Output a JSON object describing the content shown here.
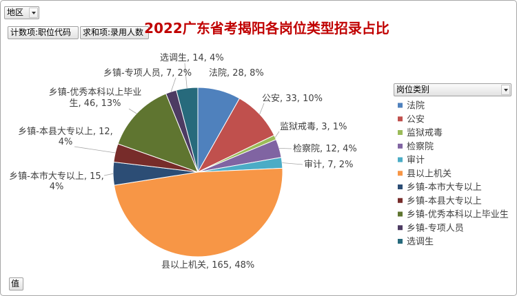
{
  "pivot": {
    "filter_button": {
      "label": "地区",
      "icon": "chevron-down-icon"
    },
    "value_buttons": [
      {
        "label": "计数项:职位代码"
      },
      {
        "label": "求和项:录用人数"
      }
    ],
    "legend_field_button": {
      "label": "岗位类别",
      "icon": "chevron-down-icon"
    },
    "values_button": {
      "label": "值"
    }
  },
  "chart_data": {
    "type": "pie",
    "title": "2022广东省考揭阳各岗位类型招录占比",
    "title_color": "#C00000",
    "categories": [
      "法院",
      "公安",
      "监狱戒毒",
      "检察院",
      "审计",
      "县以上机关",
      "乡镇-本市大专以上",
      "乡镇-本县大专以上",
      "乡镇-优秀本科以上毕业生",
      "乡镇-专项人员",
      "选调生"
    ],
    "values": [
      28,
      33,
      3,
      12,
      7,
      165,
      15,
      12,
      46,
      7,
      14
    ],
    "data_labels": [
      [
        "法院, 28, 8%"
      ],
      [
        "公安, 33, 10%"
      ],
      [
        "监狱戒毒, 3, 1%"
      ],
      [
        "检察院, 12, 4%"
      ],
      [
        "审计, 7, 2%"
      ],
      [
        "县以上机关, 165, 48%"
      ],
      [
        "乡镇-本市大专以上, 15,",
        "4%"
      ],
      [
        "乡镇-本县大专以上, 12,",
        "4%"
      ],
      [
        "乡镇-优秀本科以上毕业",
        "生, 46, 13%"
      ],
      [
        "乡镇-专项人员, 7, 2%"
      ],
      [
        "选调生, 14, 4%"
      ]
    ],
    "colors": [
      "#4F81BD",
      "#C0504D",
      "#9BBB59",
      "#8064A2",
      "#4BACC6",
      "#F79646",
      "#2C4D75",
      "#772C2A",
      "#5F7530",
      "#4D3B62",
      "#276A7C"
    ],
    "legend_position": "right"
  }
}
